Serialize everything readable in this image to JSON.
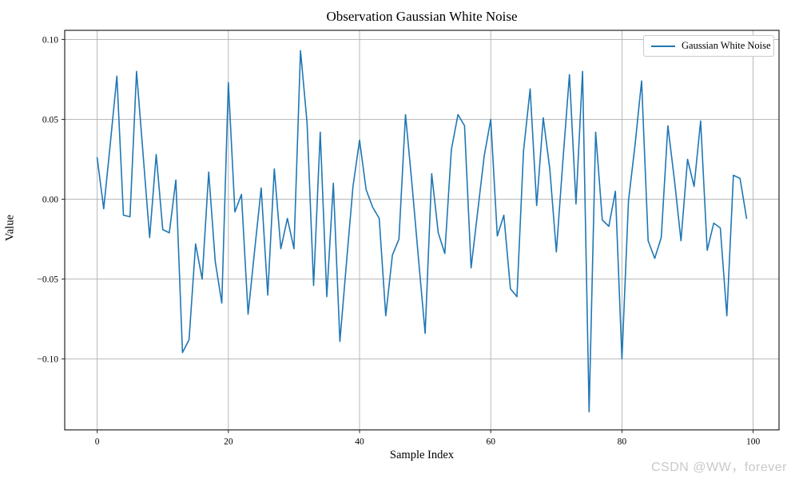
{
  "figure": {
    "title": "Observation Gaussian White Noise",
    "xlabel": "Sample Index",
    "ylabel": "Value",
    "legend": {
      "label": "Gaussian White Noise"
    },
    "watermark": "CSDN @WW，forever"
  },
  "chart_data": {
    "type": "line",
    "title": "Observation Gaussian White Noise",
    "xlabel": "Sample Index",
    "ylabel": "Value",
    "legend_position": "upper right",
    "grid": true,
    "xlim": [
      -4.95,
      103.95
    ],
    "ylim": [
      -0.1444,
      0.1057
    ],
    "x_ticks": [
      {
        "v": 0,
        "label": "0"
      },
      {
        "v": 20,
        "label": "20"
      },
      {
        "v": 40,
        "label": "40"
      },
      {
        "v": 60,
        "label": "60"
      },
      {
        "v": 80,
        "label": "80"
      },
      {
        "v": 100,
        "label": "100"
      }
    ],
    "y_ticks": [
      {
        "v": 0.1,
        "label": "0.10"
      },
      {
        "v": 0.05,
        "label": "0.05"
      },
      {
        "v": 0.0,
        "label": "0.00"
      },
      {
        "v": -0.05,
        "label": "−0.05"
      },
      {
        "v": -0.1,
        "label": "−0.10"
      }
    ],
    "colors": {
      "line": "#1f77b4",
      "grid": "#b0b0b0",
      "spine": "#262626",
      "watermark": "#c9c9c9"
    },
    "series": [
      {
        "name": "Gaussian White Noise",
        "color": "#1f77b4",
        "x_start": 0,
        "x_step": 1,
        "values": [
          0.026,
          -0.006,
          0.035,
          0.077,
          -0.01,
          -0.011,
          0.08,
          0.028,
          -0.024,
          0.028,
          -0.019,
          -0.021,
          0.012,
          -0.096,
          -0.088,
          -0.028,
          -0.05,
          0.017,
          -0.039,
          -0.065,
          0.073,
          -0.008,
          0.003,
          -0.072,
          -0.032,
          0.007,
          -0.06,
          0.019,
          -0.031,
          -0.012,
          -0.031,
          0.093,
          0.048,
          -0.054,
          0.042,
          -0.061,
          0.01,
          -0.089,
          -0.04,
          0.008,
          0.037,
          0.006,
          -0.005,
          -0.012,
          -0.073,
          -0.035,
          -0.025,
          0.053,
          0.009,
          -0.038,
          -0.084,
          0.016,
          -0.021,
          -0.034,
          0.031,
          0.053,
          0.046,
          -0.043,
          -0.008,
          0.027,
          0.05,
          -0.023,
          -0.01,
          -0.056,
          -0.061,
          0.03,
          0.069,
          -0.004,
          0.051,
          0.019,
          -0.033,
          0.024,
          0.078,
          -0.003,
          0.08,
          -0.133,
          0.042,
          -0.013,
          -0.017,
          0.005,
          -0.1,
          -0.001,
          0.034,
          0.074,
          -0.026,
          -0.037,
          -0.024,
          0.046,
          0.012,
          -0.026,
          0.025,
          0.008,
          0.049,
          -0.032,
          -0.015,
          -0.018,
          -0.073,
          0.015,
          0.013,
          -0.012
        ]
      }
    ]
  }
}
